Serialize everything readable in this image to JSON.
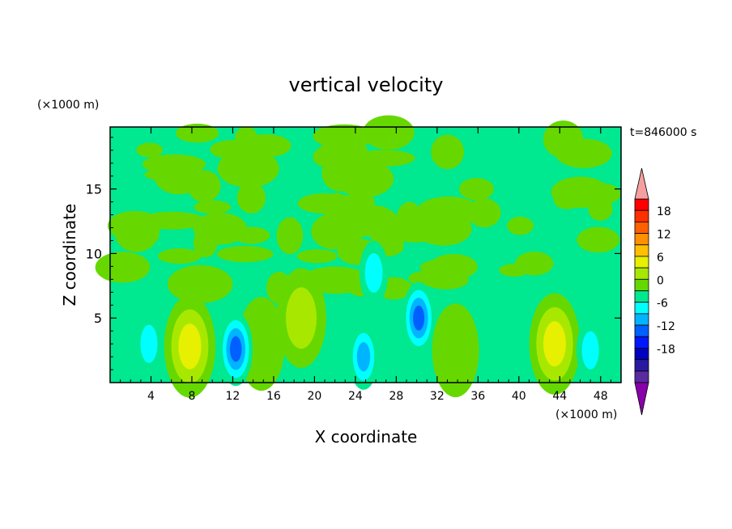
{
  "chart_data": {
    "type": "heatmap",
    "title": "vertical velocity",
    "xlabel": "X coordinate",
    "ylabel": "Z coordinate",
    "x_unit": "(×1000 m)",
    "y_unit": "(×1000 m)",
    "time_label": "t=846000 s",
    "xlim": [
      0,
      50
    ],
    "ylim": [
      0,
      19.8
    ],
    "x_ticks": [
      4,
      8,
      12,
      16,
      20,
      24,
      28,
      32,
      36,
      40,
      44,
      48
    ],
    "y_ticks": [
      5,
      10,
      15
    ],
    "colorbar": {
      "tick_labels": [
        18,
        12,
        6,
        0,
        -6,
        -12,
        -18
      ],
      "levels": [
        21,
        18,
        15,
        12,
        9,
        6,
        3,
        0,
        -3,
        -6,
        -9,
        -12,
        -15,
        -18,
        -21
      ],
      "colors": [
        "#ff0000",
        "#ff3000",
        "#ff6000",
        "#ff9000",
        "#ffc000",
        "#e6f000",
        "#a8e800",
        "#66d800",
        "#00e890",
        "#00ffff",
        "#00b4ff",
        "#0060ff",
        "#0018ff",
        "#0000c0",
        "#2a1aa0",
        "#5a2aa0"
      ],
      "over_color": "#f5a0a0",
      "under_color": "#8800aa"
    },
    "background_color": "#00e890",
    "features": [
      {
        "x": 7.8,
        "z": 2.8,
        "w": 9.5,
        "label": "updraft"
      },
      {
        "x": 18.7,
        "z": 5.0,
        "w": 8.0,
        "label": "updraft"
      },
      {
        "x": 43.5,
        "z": 3.0,
        "w": 9.0,
        "label": "updraft"
      },
      {
        "x": 33.8,
        "z": 2.5,
        "w": 5.0,
        "label": "updraft"
      },
      {
        "x": 14.8,
        "z": 3.0,
        "w": 5.0,
        "label": "updraft"
      },
      {
        "x": 12.3,
        "z": 2.6,
        "w": -13.0,
        "label": "downdraft"
      },
      {
        "x": 30.2,
        "z": 5.0,
        "w": -12.0,
        "label": "downdraft"
      },
      {
        "x": 24.8,
        "z": 2.0,
        "w": -9.0,
        "label": "downdraft"
      },
      {
        "x": 25.8,
        "z": 8.5,
        "w": -8.0,
        "label": "downdraft"
      },
      {
        "x": 3.8,
        "z": 3.0,
        "w": -7.0,
        "label": "downdraft"
      },
      {
        "x": 47.0,
        "z": 2.5,
        "w": -7.0,
        "label": "downdraft"
      }
    ]
  }
}
